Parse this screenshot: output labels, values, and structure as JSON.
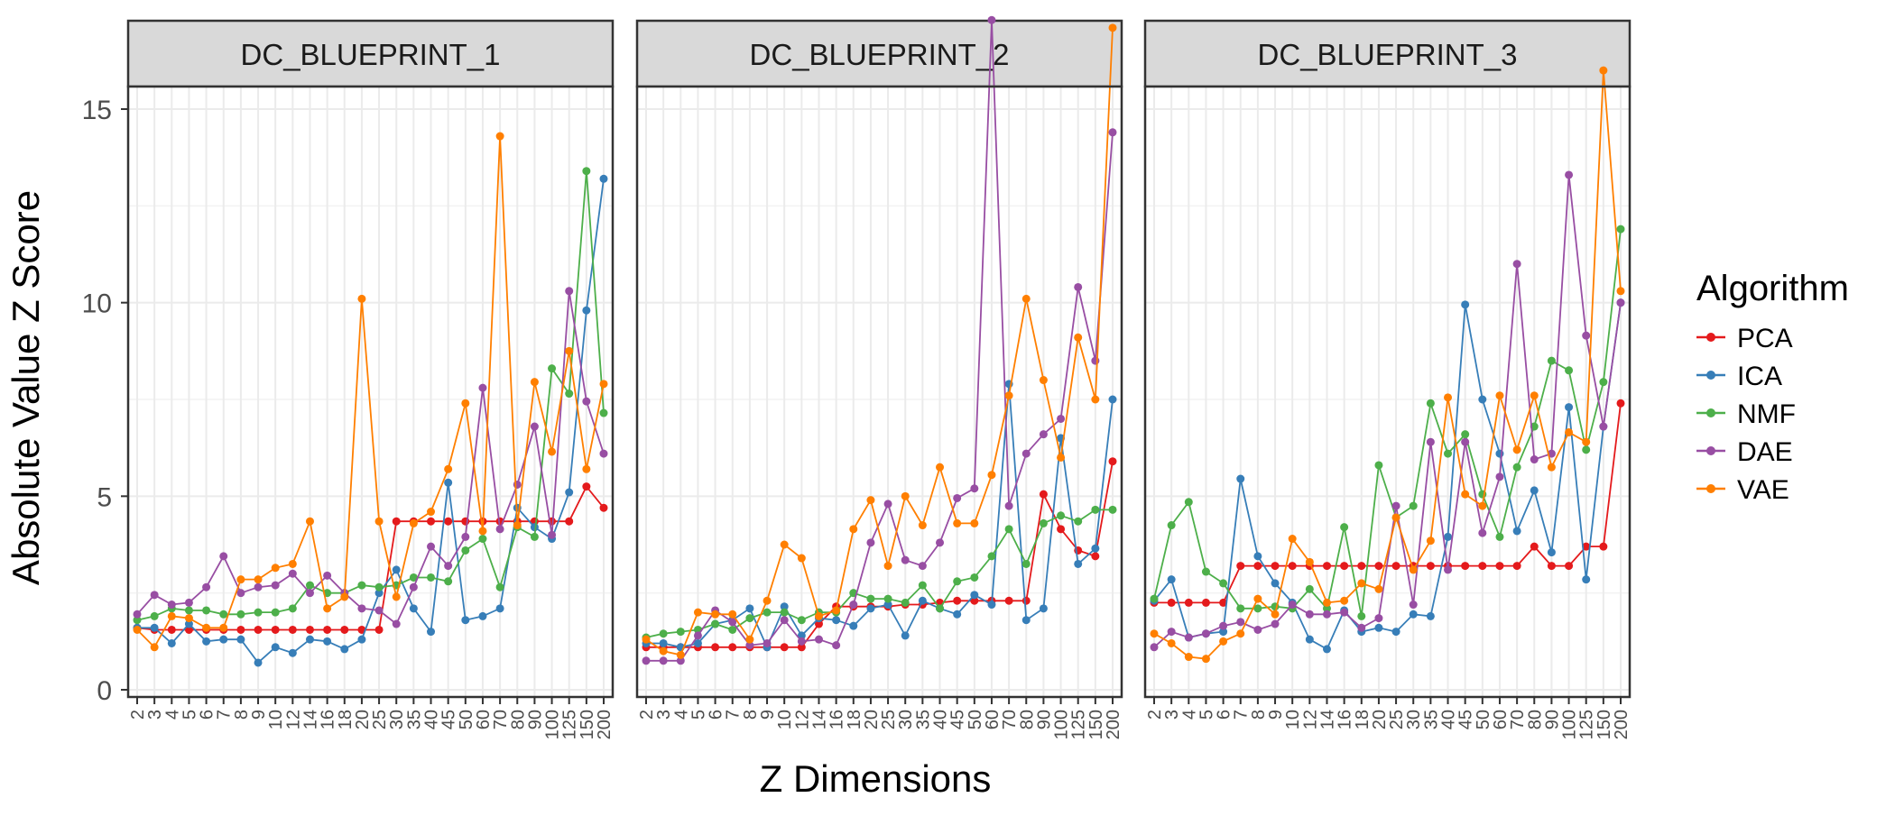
{
  "chart_data": {
    "type": "line",
    "facets": [
      "DC_BLUEPRINT_1",
      "DC_BLUEPRINT_2",
      "DC_BLUEPRINT_3"
    ],
    "xlabel": "Z Dimensions",
    "ylabel": "Absolute Value Z Score",
    "ylim": [
      0,
      18
    ],
    "yticks": [
      0,
      5,
      10,
      15
    ],
    "grid": true,
    "legend": {
      "title": "Algorithm",
      "position": "right"
    },
    "categories": [
      "2",
      "3",
      "4",
      "5",
      "6",
      "7",
      "8",
      "9",
      "10",
      "12",
      "14",
      "16",
      "18",
      "20",
      "25",
      "30",
      "35",
      "40",
      "45",
      "50",
      "60",
      "70",
      "80",
      "90",
      "100",
      "125",
      "150",
      "200"
    ],
    "colors": {
      "PCA": "#e41a1c",
      "ICA": "#377eb8",
      "NMF": "#4daf4a",
      "DAE": "#984ea3",
      "VAE": "#ff7f00"
    },
    "panels": [
      {
        "facet": "DC_BLUEPRINT_1",
        "series": [
          {
            "name": "PCA",
            "values": [
              1.6,
              1.55,
              1.55,
              1.55,
              1.55,
              1.55,
              1.55,
              1.55,
              1.55,
              1.55,
              1.55,
              1.55,
              1.55,
              1.55,
              1.55,
              4.35,
              4.35,
              4.35,
              4.35,
              4.35,
              4.35,
              4.35,
              4.35,
              4.35,
              4.35,
              4.35,
              5.25,
              4.7
            ]
          },
          {
            "name": "ICA",
            "values": [
              1.6,
              1.6,
              1.2,
              1.7,
              1.25,
              1.3,
              1.3,
              0.7,
              1.1,
              0.95,
              1.3,
              1.25,
              1.05,
              1.3,
              2.5,
              3.1,
              2.1,
              1.5,
              5.35,
              1.8,
              1.9,
              2.1,
              4.7,
              4.2,
              3.9,
              5.1,
              9.8,
              13.2
            ]
          },
          {
            "name": "NMF",
            "values": [
              1.8,
              1.9,
              2.1,
              2.05,
              2.05,
              1.95,
              1.95,
              2.0,
              2.0,
              2.1,
              2.7,
              2.5,
              2.5,
              2.7,
              2.65,
              2.7,
              2.9,
              2.9,
              2.8,
              3.6,
              3.9,
              2.65,
              4.2,
              3.95,
              8.3,
              7.65,
              13.4,
              7.15
            ]
          },
          {
            "name": "DAE",
            "values": [
              1.95,
              2.45,
              2.2,
              2.25,
              2.65,
              3.45,
              2.5,
              2.65,
              2.7,
              3.0,
              2.5,
              2.95,
              2.5,
              2.1,
              2.05,
              1.7,
              2.65,
              3.7,
              3.2,
              3.95,
              7.8,
              4.15,
              5.3,
              6.8,
              4.0,
              10.3,
              7.45,
              6.1
            ]
          },
          {
            "name": "VAE",
            "values": [
              1.55,
              1.1,
              1.9,
              1.85,
              1.6,
              1.6,
              2.85,
              2.85,
              3.15,
              3.25,
              4.35,
              2.1,
              2.4,
              10.1,
              4.35,
              2.4,
              4.3,
              4.6,
              5.7,
              7.4,
              4.1,
              14.3,
              4.25,
              7.95,
              6.15,
              8.75,
              5.7,
              7.9
            ]
          }
        ]
      },
      {
        "facet": "DC_BLUEPRINT_2",
        "series": [
          {
            "name": "PCA",
            "values": [
              1.1,
              1.1,
              1.1,
              1.1,
              1.1,
              1.1,
              1.1,
              1.1,
              1.1,
              1.1,
              1.7,
              2.15,
              2.15,
              2.15,
              2.15,
              2.2,
              2.2,
              2.25,
              2.3,
              2.3,
              2.3,
              2.3,
              2.3,
              5.05,
              4.15,
              3.6,
              3.45,
              5.9
            ]
          },
          {
            "name": "ICA",
            "values": [
              1.2,
              1.2,
              1.1,
              1.2,
              1.7,
              1.8,
              2.1,
              1.1,
              2.15,
              1.4,
              1.85,
              1.8,
              1.65,
              2.1,
              2.2,
              1.4,
              2.3,
              2.1,
              1.95,
              2.45,
              2.2,
              7.9,
              1.8,
              2.1,
              6.5,
              3.25,
              3.65,
              7.5
            ]
          },
          {
            "name": "NMF",
            "values": [
              1.35,
              1.45,
              1.5,
              1.55,
              1.7,
              1.55,
              1.85,
              2.0,
              2.0,
              1.8,
              2.0,
              2.0,
              2.5,
              2.35,
              2.35,
              2.25,
              2.7,
              2.1,
              2.8,
              2.9,
              3.45,
              4.15,
              3.25,
              4.3,
              4.5,
              4.35,
              4.65,
              4.65
            ]
          },
          {
            "name": "DAE",
            "values": [
              0.75,
              0.75,
              0.75,
              1.4,
              2.05,
              1.75,
              1.15,
              1.2,
              1.8,
              1.25,
              1.3,
              1.15,
              2.2,
              3.8,
              4.8,
              3.35,
              3.2,
              3.8,
              4.95,
              5.2,
              17.3,
              4.75,
              6.1,
              6.6,
              7.0,
              10.4,
              8.5,
              14.4
            ]
          },
          {
            "name": "VAE",
            "values": [
              1.3,
              1.0,
              0.9,
              2.0,
              1.95,
              1.95,
              1.3,
              2.3,
              3.75,
              3.4,
              1.9,
              2.05,
              4.15,
              4.9,
              3.2,
              5.0,
              4.25,
              5.75,
              4.3,
              4.3,
              5.55,
              7.6,
              10.1,
              8.0,
              6.0,
              9.1,
              7.5,
              17.1
            ]
          }
        ]
      },
      {
        "facet": "DC_BLUEPRINT_3",
        "series": [
          {
            "name": "PCA",
            "values": [
              2.25,
              2.25,
              2.25,
              2.25,
              2.25,
              3.2,
              3.2,
              3.2,
              3.2,
              3.2,
              3.2,
              3.2,
              3.2,
              3.2,
              3.2,
              3.2,
              3.2,
              3.2,
              3.2,
              3.2,
              3.2,
              3.2,
              3.7,
              3.2,
              3.2,
              3.7,
              3.7,
              7.4
            ]
          },
          {
            "name": "ICA",
            "values": [
              2.3,
              2.85,
              1.35,
              1.45,
              1.5,
              5.45,
              3.45,
              2.75,
              2.25,
              1.3,
              1.05,
              2.05,
              1.5,
              1.6,
              1.5,
              1.95,
              1.9,
              3.95,
              9.95,
              7.5,
              6.1,
              4.1,
              5.15,
              3.55,
              7.3,
              2.85,
              6.8,
              10.0
            ]
          },
          {
            "name": "NMF",
            "values": [
              2.35,
              4.25,
              4.85,
              3.05,
              2.75,
              2.1,
              2.1,
              2.15,
              2.1,
              2.6,
              2.1,
              4.2,
              1.9,
              5.8,
              4.45,
              4.75,
              7.4,
              6.1,
              6.6,
              5.05,
              3.95,
              5.75,
              6.8,
              8.5,
              8.25,
              6.2,
              7.95,
              11.9
            ]
          },
          {
            "name": "DAE",
            "values": [
              1.1,
              1.5,
              1.35,
              1.45,
              1.65,
              1.75,
              1.55,
              1.7,
              2.2,
              1.95,
              1.95,
              2.0,
              1.6,
              1.85,
              4.75,
              2.2,
              6.4,
              3.1,
              6.4,
              4.05,
              5.5,
              11.0,
              5.95,
              6.1,
              13.3,
              9.15,
              6.8,
              10.0
            ]
          },
          {
            "name": "VAE",
            "values": [
              1.45,
              1.2,
              0.85,
              0.8,
              1.25,
              1.45,
              2.35,
              1.95,
              3.9,
              3.3,
              2.25,
              2.3,
              2.75,
              2.6,
              4.45,
              3.1,
              3.85,
              7.55,
              5.05,
              4.75,
              7.6,
              6.2,
              7.6,
              5.75,
              6.65,
              6.4,
              16.0,
              10.3
            ]
          }
        ]
      }
    ]
  }
}
